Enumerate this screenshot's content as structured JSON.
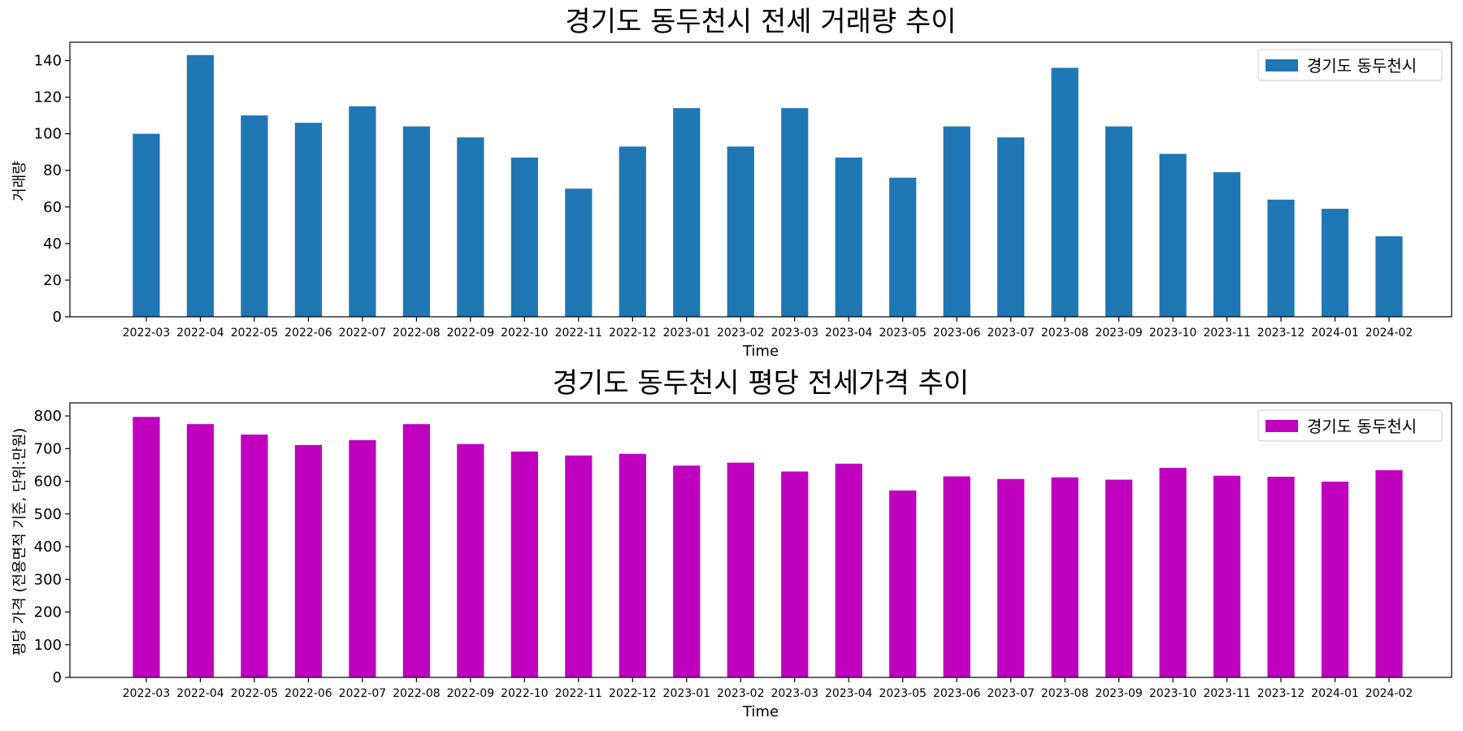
{
  "chart_data": [
    {
      "type": "bar",
      "title": "경기도 동두천시 전세 거래량 추이",
      "xlabel": "Time",
      "ylabel": "거래량",
      "categories": [
        "2022-03",
        "2022-04",
        "2022-05",
        "2022-06",
        "2022-07",
        "2022-08",
        "2022-09",
        "2022-10",
        "2022-11",
        "2022-12",
        "2023-01",
        "2023-02",
        "2023-03",
        "2023-04",
        "2023-05",
        "2023-06",
        "2023-07",
        "2023-08",
        "2023-09",
        "2023-10",
        "2023-11",
        "2023-12",
        "2024-01",
        "2024-02"
      ],
      "series": [
        {
          "name": "경기도 동두천시",
          "color": "#1f77b4",
          "values": [
            100,
            143,
            110,
            106,
            115,
            104,
            98,
            87,
            70,
            93,
            114,
            93,
            114,
            87,
            76,
            104,
            98,
            136,
            104,
            89,
            79,
            64,
            59,
            44
          ]
        }
      ],
      "ylim": [
        0,
        150
      ],
      "yticks": [
        0,
        20,
        40,
        60,
        80,
        100,
        120,
        140
      ],
      "legend": "top-right",
      "grid": false
    },
    {
      "type": "bar",
      "title": "경기도 동두천시 평당 전세가격 추이",
      "xlabel": "Time",
      "ylabel": "평당 가격 (전용면적 기준, 단위:만원)",
      "categories": [
        "2022-03",
        "2022-04",
        "2022-05",
        "2022-06",
        "2022-07",
        "2022-08",
        "2022-09",
        "2022-10",
        "2022-11",
        "2022-12",
        "2023-01",
        "2023-02",
        "2023-03",
        "2023-04",
        "2023-05",
        "2023-06",
        "2023-07",
        "2023-08",
        "2023-09",
        "2023-10",
        "2023-11",
        "2023-12",
        "2024-01",
        "2024-02"
      ],
      "series": [
        {
          "name": "경기도 동두천시",
          "color": "#bf00bf",
          "values": [
            797,
            775,
            743,
            711,
            726,
            775,
            714,
            691,
            679,
            684,
            648,
            657,
            630,
            654,
            572,
            615,
            607,
            612,
            605,
            641,
            617,
            614,
            599,
            634
          ]
        }
      ],
      "ylim": [
        0,
        840
      ],
      "yticks": [
        0,
        100,
        200,
        300,
        400,
        500,
        600,
        700,
        800
      ],
      "legend": "top-right",
      "grid": false
    }
  ]
}
